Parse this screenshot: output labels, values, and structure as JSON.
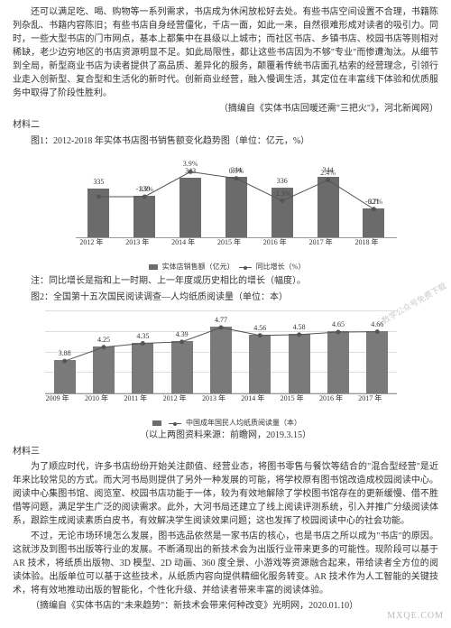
{
  "intro": {
    "p1": "还可以满足吃、喝、购物等一系列需求，书店成为休闲放松好去处。有些书店空间设置不合理，书籍陈列杂乱、书籍内容陈旧；有些书店自身经营僵化，千店一面，如此一来，自然很难形成对读者的吸引力。同时，一些大型书店的门市网点，基本上都集中在县级以上城市；而社区书店、乡镇书店、校园书店等则相对稀缺，老少边穷地区的书店资源明显不足。如此局限性，都让这些书店因为不够\"专业\"而惨遭淘汰。从细节到全局，新型商业书店为读者提供了高品质、差异化的服务，颠覆着传统书店面孔枯索的经营理念，引领行业走入创新型、复合型和生活化的新时代。创新商业经营，融入慢调生活，其定位在丰富线下体验和优质服务中取得了阶段性胜利。",
    "cite1": "（摘编自《实体书店回暖还需\"三把火\"》，河北新闻网）"
  },
  "section2": {
    "label": "材料二",
    "fig1_caption": "图1：2012-2018 年实体书店图书销售额变化趋势图（单位：亿元，%）",
    "chart1": {
      "type": "bar+line",
      "years": [
        "2012 年",
        "2013 年",
        "2014 年",
        "2015 年",
        "2016 年",
        "2017 年",
        "2018 年"
      ],
      "sales": [
        335,
        330,
        343,
        344,
        336,
        344,
        321
      ],
      "growth_labels": [
        "",
        "-1.5%",
        "3.9%",
        "0.3%",
        "-2.3%",
        "2.4%",
        "-6.7%"
      ],
      "growth_y": [
        0.5,
        0.5,
        0.2,
        0.28,
        0.55,
        0.3,
        0.65
      ],
      "ylim_bar": [
        300,
        360
      ],
      "bar_color": "#6b6b6b",
      "line_color": "#555555",
      "legend_bar": "实体店销售额（亿元）",
      "legend_line": "同比增长（%）"
    },
    "note": "注：同比增长是指和上一时期、上一年度或历史相比的增长（幅度）。",
    "fig2_caption": "图2：全国第十五次国民阅读调查—人均纸质阅读量（单位：本）",
    "chart2": {
      "type": "bar+line",
      "years": [
        "2009 年",
        "2010 年",
        "2011 年",
        "2012 年",
        "2013 年",
        "2014 年",
        "2015 年",
        "2016 年",
        "2017 年"
      ],
      "values": [
        3.88,
        4.25,
        4.35,
        4.39,
        4.77,
        4.56,
        4.58,
        4.65,
        4.66
      ],
      "ylim": [
        3.0,
        5.2
      ],
      "bar_color": "#7a7a7a",
      "line_color": "#555555",
      "legend": "中国成年国民人均纸质阅读量（本）"
    },
    "source": "（以上两图资料来源：前瞻网，2019.3.15）"
  },
  "section3": {
    "label": "材料三",
    "p1": "为了顺应时代，许多书店纷纷开始关注颜值、经营业态，将图书零售与餐饮等结合的\"混合型经营\"是近年来比较常见的方式。而大河书局则提供了另外一种发展的可能，将学校原有图书馆改造成校园阅读中心。阅读中心集图书馆、阅览室、校园书店功能于一体，较为有效地解除了学校图书馆存在的更新缓慢、借不胜借等问题，满足学生广泛的阅读需求。此外，大河书局还建立了线上阅读评测系统，引入并推广分级阅读体系，跟踪生成阅读素质白皮书，有效解决学生阅读效果问题；这也发挥了校园阅读中心的社会功能。",
    "p2": "不过，无论市场环境怎么发展，图书选品依然是一家书店的核心，也是书店之所以成为\"书店\"的原因。这就涉及到图书出版等行业的发展。不断涌现出的新技术会为出版行业带来更多的可能性。现阶段可以基于 AR 技术，将纸质出版物、3D 模型、2D 动画、360 度全景、小游戏等资源融合起来，带给读者全方位的阅读体验。出版单位可以基于这些技术，从纸质内容向提供精细化服务转变。AR 技术作为人工智能的关键技术，将有效地推动出版的智能化，个性化升级、并给读者带来丰富的阅读体验。",
    "cite": "（摘编自《实体书店的\"未来趋势\"：新技术会带来何种改变》光明网，2020.01.10）"
  },
  "watermark": "MXQE.COM",
  "watermark_side": "数学公众号免费下载"
}
